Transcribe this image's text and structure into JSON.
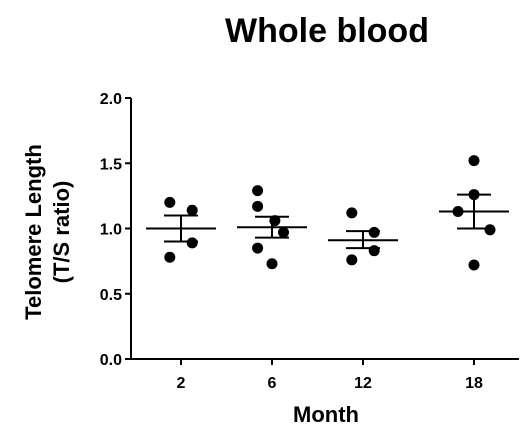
{
  "chart_data": {
    "type": "scatter",
    "title": "Whole blood",
    "xlabel": "Month",
    "ylabel_line1": "Telomere Length",
    "ylabel_line2": "(T/S ratio)",
    "categories": [
      "2",
      "6",
      "12",
      "18"
    ],
    "yticks": [
      "0.0",
      "0.5",
      "1.0",
      "1.5",
      "2.0"
    ],
    "ylim": [
      0,
      2
    ],
    "groups": [
      {
        "category": "2",
        "points": [
          1.2,
          1.14,
          0.89,
          0.78
        ],
        "mean": 1.0,
        "sem_low": 0.9,
        "sem_high": 1.1
      },
      {
        "category": "6",
        "points": [
          1.29,
          1.17,
          1.06,
          0.97,
          0.85,
          0.73
        ],
        "mean": 1.01,
        "sem_low": 0.93,
        "sem_high": 1.09
      },
      {
        "category": "12",
        "points": [
          1.12,
          0.97,
          0.83,
          0.76
        ],
        "mean": 0.91,
        "sem_low": 0.85,
        "sem_high": 0.98
      },
      {
        "category": "18",
        "points": [
          1.52,
          1.26,
          1.13,
          0.99,
          0.72
        ],
        "mean": 1.13,
        "sem_low": 1.0,
        "sem_high": 1.26
      }
    ],
    "marker_color": "#000000",
    "grid": false,
    "legend": "none"
  }
}
